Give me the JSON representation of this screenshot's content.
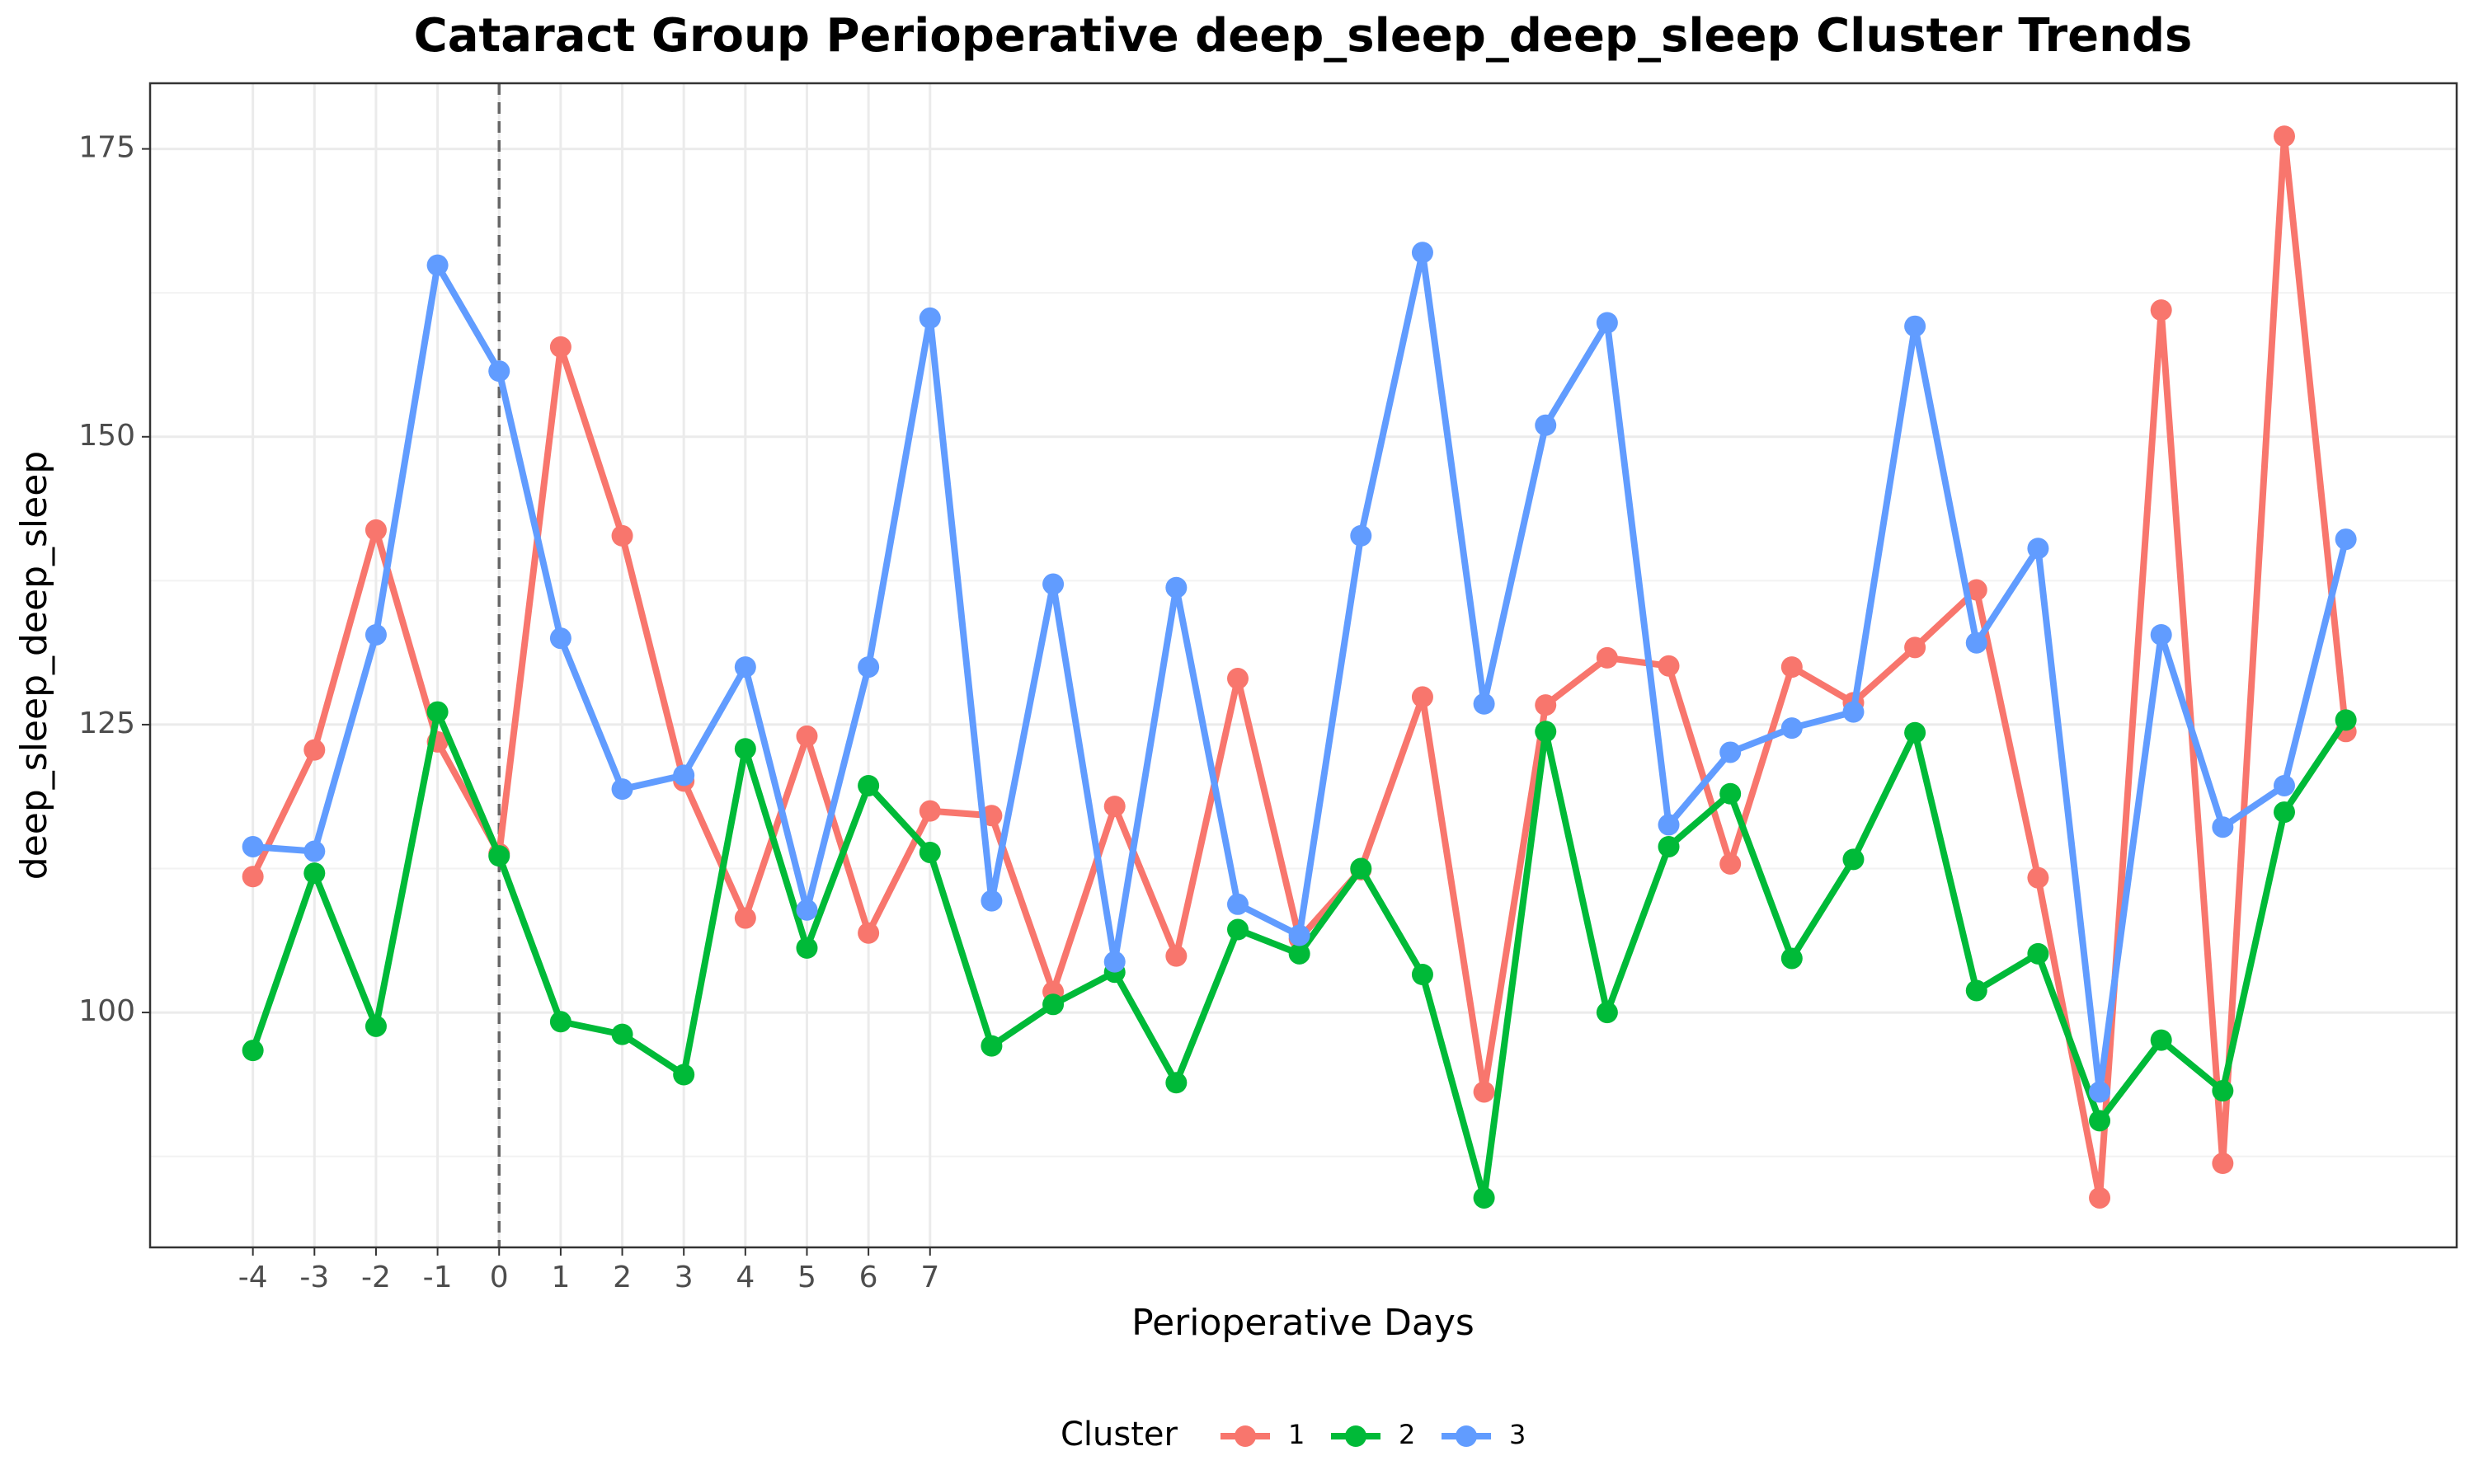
{
  "chart_data": {
    "type": "line",
    "title": "Cataract Group Perioperative deep_sleep_deep_sleep Cluster Trends",
    "x_label": "Perioperative Days",
    "y_label": "deep_sleep_deep_sleep",
    "legend_title": "Cluster",
    "legend_position": "bottom",
    "grid": true,
    "vline": 0,
    "x": [
      -4,
      -3,
      -2,
      -1,
      0,
      1,
      2,
      3,
      4,
      5,
      6,
      7,
      8,
      9,
      10,
      11,
      12,
      13,
      14,
      15,
      16,
      17,
      18,
      19,
      20,
      21,
      22,
      23,
      24,
      25,
      26,
      27,
      28,
      29,
      30
    ],
    "xlim": [
      -5.67,
      31.8
    ],
    "xticks": [
      -4,
      -3,
      -2,
      -1,
      0,
      1,
      2,
      3,
      4,
      5,
      6,
      7
    ],
    "ylim": [
      79.6,
      180.7
    ],
    "yticks": [
      100,
      125,
      150,
      175
    ],
    "series": [
      {
        "name": "1",
        "color": "#F8766D",
        "values": [
          111.8,
          122.8,
          141.9,
          123.5,
          113.8,
          157.8,
          141.4,
          120.1,
          108.2,
          124.0,
          106.9,
          117.5,
          117.1,
          101.8,
          117.9,
          104.9,
          129.0,
          106.4,
          112.4,
          127.4,
          93.1,
          126.7,
          130.8,
          130.1,
          112.9,
          130.0,
          126.9,
          131.7,
          136.7,
          111.7,
          83.9,
          161.0,
          86.9,
          176.1,
          124.4
        ]
      },
      {
        "name": "2",
        "color": "#00BA38",
        "values": [
          96.7,
          112.1,
          98.8,
          126.1,
          113.6,
          99.2,
          98.1,
          94.6,
          122.9,
          105.6,
          119.7,
          113.9,
          97.1,
          100.7,
          103.5,
          93.9,
          107.2,
          105.1,
          112.5,
          103.3,
          83.9,
          124.4,
          100.0,
          114.4,
          119.0,
          104.7,
          113.3,
          124.3,
          101.9,
          105.1,
          90.6,
          97.6,
          93.2,
          117.4,
          125.4
        ]
      },
      {
        "name": "3",
        "color": "#619CFF",
        "values": [
          114.4,
          114.0,
          132.8,
          164.9,
          155.7,
          132.5,
          119.4,
          120.6,
          130.0,
          108.9,
          130.0,
          160.3,
          109.7,
          137.2,
          104.4,
          136.9,
          109.4,
          106.7,
          141.4,
          166.0,
          126.8,
          151.0,
          159.9,
          116.3,
          122.6,
          124.7,
          126.1,
          159.6,
          132.1,
          140.3,
          93.1,
          132.8,
          116.1,
          119.7,
          141.1
        ]
      }
    ]
  }
}
